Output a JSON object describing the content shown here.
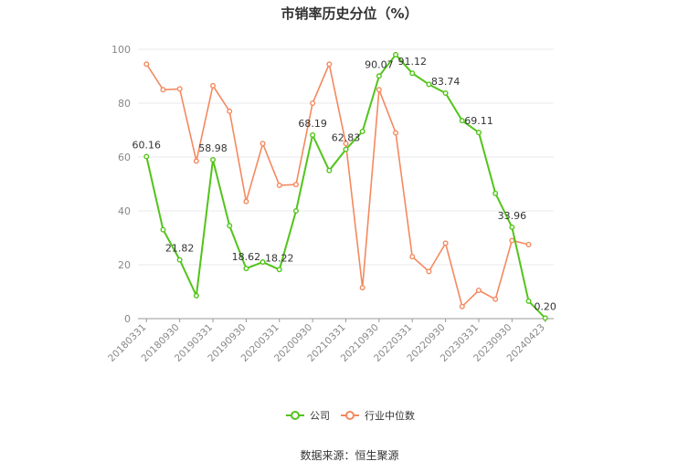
{
  "chart_data": {
    "type": "line",
    "title": "市销率历史分位（%）",
    "source": "数据来源：恒生聚源",
    "ylim": [
      0,
      100
    ],
    "yticks": [
      0,
      20,
      40,
      60,
      80,
      100
    ],
    "x": [
      "20180331",
      "20180630",
      "20180930",
      "20181231",
      "20190331",
      "20190630",
      "20190930",
      "20191231",
      "20200331",
      "20200630",
      "20200930",
      "20201231",
      "20210331",
      "20210630",
      "20210930",
      "20211231",
      "20220331",
      "20220630",
      "20220930",
      "20221231",
      "20230331",
      "20230630",
      "20230930",
      "20231231",
      "20240423"
    ],
    "xtick_labels": [
      "20180331",
      "20180930",
      "20190331",
      "20190930",
      "20200331",
      "20200930",
      "20210331",
      "20210930",
      "20220331",
      "20220930",
      "20230331",
      "20230930",
      "20240423"
    ],
    "grid": "horizontal",
    "legend_position": "bottom-center",
    "series": [
      {
        "name": "公司",
        "color": "#52c41a",
        "values": [
          60.16,
          33.0,
          21.82,
          8.5,
          58.98,
          34.5,
          18.62,
          21.0,
          18.22,
          40.0,
          68.19,
          55.0,
          62.83,
          69.5,
          90.07,
          98.0,
          91.12,
          87.0,
          83.74,
          73.5,
          69.11,
          46.5,
          33.96,
          6.5,
          0.2
        ],
        "labels": {
          "0": "60.16",
          "2": "21.82",
          "4": "58.98",
          "6": "18.62",
          "8": "18.22",
          "10": "68.19",
          "12": "62.83",
          "14": "90.07",
          "16": "91.12",
          "18": "83.74",
          "20": "69.11",
          "22": "33.96",
          "24": "0.20"
        }
      },
      {
        "name": "行业中位数",
        "color": "#f4895f",
        "values": [
          94.5,
          85.0,
          85.3,
          58.5,
          86.5,
          77.0,
          43.5,
          65.0,
          49.5,
          49.8,
          80.0,
          94.5,
          65.0,
          11.5,
          85.0,
          69.0,
          23.0,
          17.5,
          28.0,
          4.5,
          10.5,
          7.2,
          29.0,
          27.5,
          null
        ]
      }
    ]
  }
}
